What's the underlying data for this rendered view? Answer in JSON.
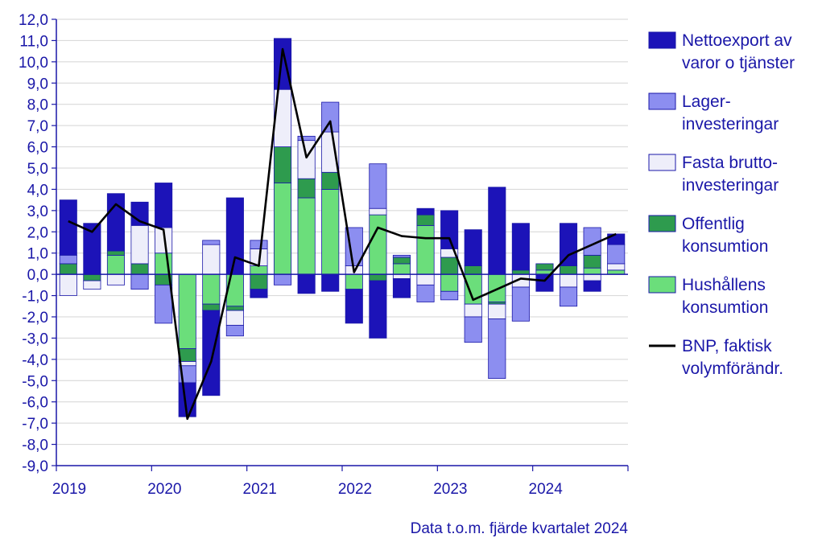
{
  "footer": {
    "note": "Data t.o.m. fjärde kvartalet 2024"
  },
  "chart_data": {
    "type": "bar",
    "stacked": true,
    "ylim": [
      -9,
      12
    ],
    "yticks": [
      "12,0",
      "11,0",
      "10,0",
      "9,0",
      "8,0",
      "7,0",
      "6,0",
      "5,0",
      "4,0",
      "3,0",
      "2,0",
      "1,0",
      "0,0",
      "-1,0",
      "-2,0",
      "-3,0",
      "-4,0",
      "-5,0",
      "-6,0",
      "-7,0",
      "-8,0",
      "-9,0"
    ],
    "xtick_labels": [
      "2019",
      "2020",
      "2021",
      "2022",
      "2023",
      "2024"
    ],
    "grid": true,
    "legend_position": "right",
    "categories": [
      "2019 K1",
      "2019 K2",
      "2019 K3",
      "2019 K4",
      "2020 K1",
      "2020 K2",
      "2020 K3",
      "2020 K4",
      "2021 K1",
      "2021 K2",
      "2021 K3",
      "2021 K4",
      "2022 K1",
      "2022 K2",
      "2022 K3",
      "2022 K4",
      "2023 K1",
      "2023 K2",
      "2023 K3",
      "2023 K4",
      "2024 K1",
      "2024 K2",
      "2024 K3",
      "2024 K4"
    ],
    "series": [
      {
        "key": "hush",
        "name": "Hushållens konsumtion",
        "name_lines": [
          "Hushållens",
          "konsumtion"
        ],
        "color": "#6bde7b",
        "values": [
          0.0,
          0.0,
          0.9,
          0.0,
          1.0,
          -3.5,
          -1.4,
          -1.5,
          0.4,
          4.3,
          3.6,
          4.0,
          -0.7,
          2.8,
          0.5,
          2.3,
          -0.8,
          -1.4,
          -1.3,
          0.0,
          0.2,
          0.0,
          0.3,
          0.2
        ]
      },
      {
        "key": "off",
        "name": "Offentlig konsumtion",
        "name_lines": [
          "Offentlig",
          "konsumtion"
        ],
        "color": "#2e9b4e",
        "values": [
          0.5,
          -0.3,
          0.2,
          0.5,
          -0.5,
          -0.6,
          -0.3,
          -0.2,
          -0.7,
          1.7,
          0.9,
          0.8,
          0.0,
          -0.3,
          0.3,
          0.5,
          0.8,
          0.4,
          -0.1,
          0.2,
          0.3,
          0.4,
          0.6,
          0.0
        ]
      },
      {
        "key": "fasta",
        "name": "Fasta bruttoinvesteringar",
        "name_lines": [
          "Fasta brutto-",
          "investeringar"
        ],
        "color": "#eeeefa",
        "values": [
          -1.0,
          -0.4,
          -0.5,
          1.8,
          1.2,
          -0.2,
          1.4,
          -0.7,
          0.8,
          2.7,
          1.8,
          1.9,
          0.4,
          0.3,
          -0.2,
          -0.5,
          0.4,
          -0.6,
          -0.7,
          -0.6,
          0.0,
          -0.6,
          -0.3,
          0.3
        ]
      },
      {
        "key": "lager",
        "name": "Lagerinvesteringar",
        "name_lines": [
          "Lager-",
          "investeringar"
        ],
        "color": "#8c8ef0",
        "values": [
          0.4,
          0.0,
          0.0,
          -0.7,
          -1.8,
          -0.8,
          0.2,
          -0.5,
          0.4,
          -0.5,
          0.2,
          1.4,
          1.8,
          2.1,
          0.1,
          -0.8,
          -0.4,
          -1.2,
          -2.8,
          -1.6,
          0.0,
          -0.9,
          1.3,
          0.9
        ]
      },
      {
        "key": "netto",
        "name": "Nettoexport av varor o tjänster",
        "name_lines": [
          "Nettoexport av",
          "varor o tjänster"
        ],
        "color": "#1c13b8",
        "values": [
          2.6,
          2.4,
          2.7,
          1.1,
          2.1,
          -1.6,
          -4.0,
          3.6,
          -0.4,
          2.4,
          -0.9,
          -0.8,
          -1.6,
          -2.7,
          -0.9,
          0.3,
          1.8,
          1.7,
          4.1,
          2.2,
          -0.8,
          2.0,
          -0.5,
          0.5
        ]
      }
    ],
    "line": {
      "name": "BNP, faktisk volymförändr.",
      "name_lines": [
        "BNP, faktisk",
        "volymförändr."
      ],
      "color": "#000000",
      "values": [
        2.5,
        2.0,
        3.3,
        2.5,
        2.1,
        -6.8,
        -4.1,
        0.8,
        0.4,
        10.6,
        5.5,
        7.2,
        0.1,
        2.2,
        1.8,
        1.7,
        1.7,
        -1.2,
        -0.7,
        -0.2,
        -0.3,
        0.9,
        1.4,
        1.9
      ]
    }
  }
}
